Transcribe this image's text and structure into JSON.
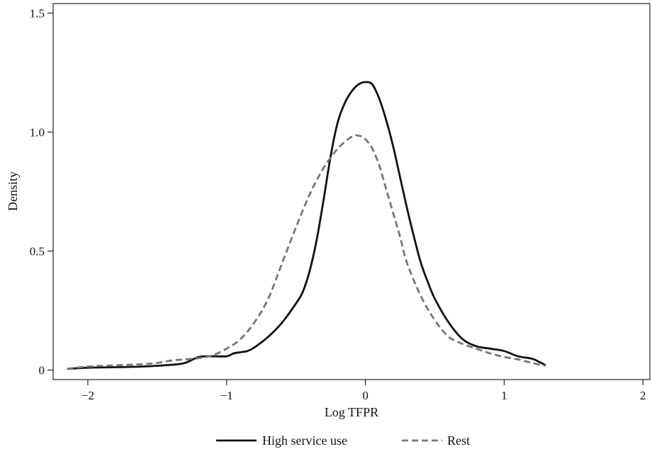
{
  "chart_data": {
    "type": "line",
    "title": "",
    "xlabel": "Log TFPR",
    "ylabel": "Density",
    "xlim": [
      -2.25,
      2.05
    ],
    "ylim": [
      -0.04,
      1.54
    ],
    "xticks": [
      -2,
      -1,
      0,
      1,
      2
    ],
    "xtick_labels": [
      "−2",
      "−1",
      "0",
      "1",
      "2"
    ],
    "yticks": [
      0,
      0.5,
      1.0,
      1.5
    ],
    "ytick_labels": [
      "0",
      "0.5",
      "1.0",
      "1.5"
    ],
    "grid": false,
    "legend_position": "bottom",
    "series": [
      {
        "name": "High service use",
        "style": "solid",
        "color": "#111111",
        "x": [
          -2.15,
          -2.0,
          -1.8,
          -1.6,
          -1.4,
          -1.3,
          -1.2,
          -1.1,
          -1.0,
          -0.95,
          -0.9,
          -0.85,
          -0.8,
          -0.7,
          -0.6,
          -0.5,
          -0.45,
          -0.4,
          -0.35,
          -0.3,
          -0.25,
          -0.2,
          -0.15,
          -0.1,
          -0.05,
          0.0,
          0.05,
          0.1,
          0.15,
          0.2,
          0.25,
          0.3,
          0.35,
          0.4,
          0.45,
          0.5,
          0.6,
          0.7,
          0.8,
          0.9,
          1.0,
          1.1,
          1.2,
          1.25,
          1.3
        ],
        "y": [
          0.005,
          0.01,
          0.012,
          0.015,
          0.022,
          0.03,
          0.055,
          0.058,
          0.058,
          0.07,
          0.075,
          0.08,
          0.095,
          0.14,
          0.2,
          0.28,
          0.33,
          0.42,
          0.55,
          0.72,
          0.9,
          1.04,
          1.12,
          1.17,
          1.2,
          1.21,
          1.2,
          1.14,
          1.05,
          0.94,
          0.81,
          0.68,
          0.56,
          0.45,
          0.37,
          0.3,
          0.2,
          0.13,
          0.1,
          0.09,
          0.08,
          0.058,
          0.048,
          0.035,
          0.02
        ]
      },
      {
        "name": "Rest",
        "style": "dashed",
        "color": "#777777",
        "x": [
          -2.15,
          -2.0,
          -1.8,
          -1.6,
          -1.5,
          -1.4,
          -1.3,
          -1.2,
          -1.1,
          -1.0,
          -0.9,
          -0.8,
          -0.7,
          -0.6,
          -0.5,
          -0.4,
          -0.3,
          -0.2,
          -0.1,
          -0.05,
          0.0,
          0.05,
          0.1,
          0.15,
          0.2,
          0.25,
          0.3,
          0.4,
          0.5,
          0.6,
          0.7,
          0.8,
          0.9,
          1.0,
          1.1,
          1.2,
          1.3
        ],
        "y": [
          0.005,
          0.015,
          0.02,
          0.025,
          0.03,
          0.04,
          0.045,
          0.05,
          0.062,
          0.09,
          0.13,
          0.2,
          0.3,
          0.45,
          0.6,
          0.74,
          0.85,
          0.93,
          0.98,
          0.985,
          0.97,
          0.93,
          0.86,
          0.76,
          0.66,
          0.56,
          0.45,
          0.31,
          0.21,
          0.14,
          0.11,
          0.09,
          0.07,
          0.055,
          0.045,
          0.03,
          0.018
        ]
      }
    ]
  }
}
